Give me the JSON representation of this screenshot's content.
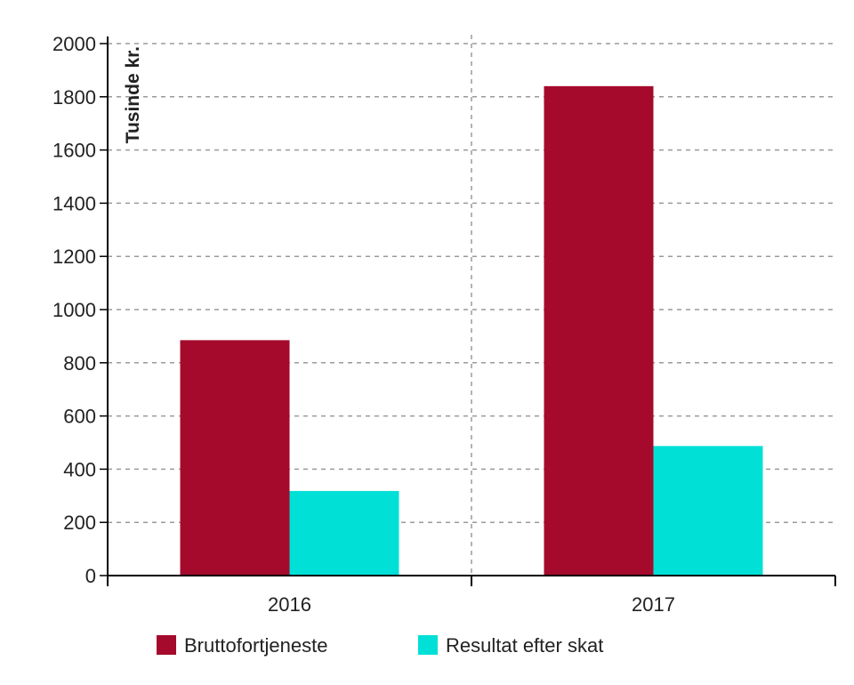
{
  "chart_data": {
    "type": "bar",
    "categories": [
      "2016",
      "2017"
    ],
    "series": [
      {
        "name": "Bruttofortjeneste",
        "values": [
          885,
          1840
        ],
        "color": "#a50a2d"
      },
      {
        "name": "Resultat efter skat",
        "values": [
          318,
          487
        ],
        "color": "#00e0d6"
      }
    ],
    "ylabel": "Tusinde kr.",
    "xlabel": "",
    "ylim": [
      0,
      2000
    ],
    "yticks": [
      "0",
      "200",
      "400",
      "600",
      "800",
      "1000",
      "1200",
      "1400",
      "1600",
      "1800",
      "2000"
    ],
    "grid": true,
    "legend": "bottom",
    "axis_color": "#000000",
    "grid_color": "#9a9a9a"
  }
}
